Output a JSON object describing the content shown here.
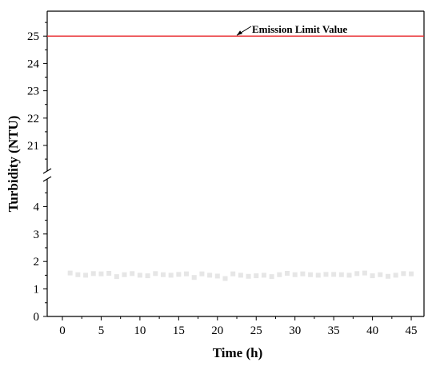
{
  "chart_data": {
    "type": "scatter",
    "xlabel": "Time (h)",
    "ylabel": "Turbidity (NTU)",
    "xlim": [
      -2,
      47
    ],
    "x_ticks": [
      0,
      5,
      10,
      15,
      20,
      25,
      30,
      35,
      40,
      45
    ],
    "y_axis_break": {
      "from": 5,
      "to": 20
    },
    "y_ticks_lower": [
      0,
      1,
      2,
      3,
      4
    ],
    "y_ticks_upper": [
      21,
      22,
      23,
      24,
      25
    ],
    "ylim_lower": [
      0,
      5
    ],
    "ylim_upper": [
      20,
      26
    ],
    "reference_line": {
      "value": 25,
      "label": "Emission Limit Value",
      "color": "#e8282b",
      "label_at_x": 22.5
    },
    "series": [
      {
        "marker_color": "#e6e6e6",
        "x": [
          1,
          2,
          3,
          4,
          5,
          6,
          7,
          8,
          9,
          10,
          11,
          12,
          13,
          14,
          15,
          16,
          17,
          18,
          19,
          20,
          21,
          22,
          23,
          24,
          25,
          26,
          27,
          28,
          29,
          30,
          31,
          32,
          33,
          34,
          35,
          36,
          37,
          38,
          39,
          40,
          41,
          42,
          43,
          44,
          45
        ],
        "y": [
          1.58,
          1.52,
          1.5,
          1.56,
          1.55,
          1.57,
          1.45,
          1.52,
          1.56,
          1.5,
          1.48,
          1.56,
          1.52,
          1.5,
          1.53,
          1.55,
          1.42,
          1.55,
          1.5,
          1.47,
          1.38,
          1.55,
          1.5,
          1.46,
          1.48,
          1.5,
          1.45,
          1.52,
          1.57,
          1.52,
          1.55,
          1.52,
          1.5,
          1.53,
          1.53,
          1.52,
          1.5,
          1.56,
          1.58,
          1.48,
          1.52,
          1.46,
          1.5,
          1.56,
          1.55
        ]
      }
    ]
  }
}
